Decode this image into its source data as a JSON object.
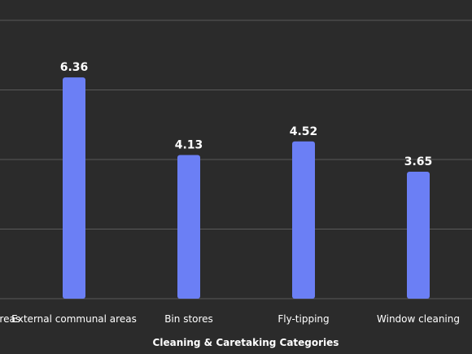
{
  "chart_data": {
    "type": "bar",
    "categories": [
      "Internal communal areas",
      "External communal areas",
      "Bin stores",
      "Fly-tipping",
      "Window cleaning"
    ],
    "values": [
      null,
      6.36,
      4.13,
      4.52,
      3.65
    ],
    "value_labels": [
      "",
      "6.36",
      "4.13",
      "4.52",
      "3.65"
    ],
    "title": "",
    "xlabel": "Cleaning & Caretaking Categories",
    "ylabel": "",
    "ylim": [
      0,
      8
    ],
    "grid": true,
    "bar_color": "#6b7ff5",
    "background": "#2b2b2b"
  }
}
